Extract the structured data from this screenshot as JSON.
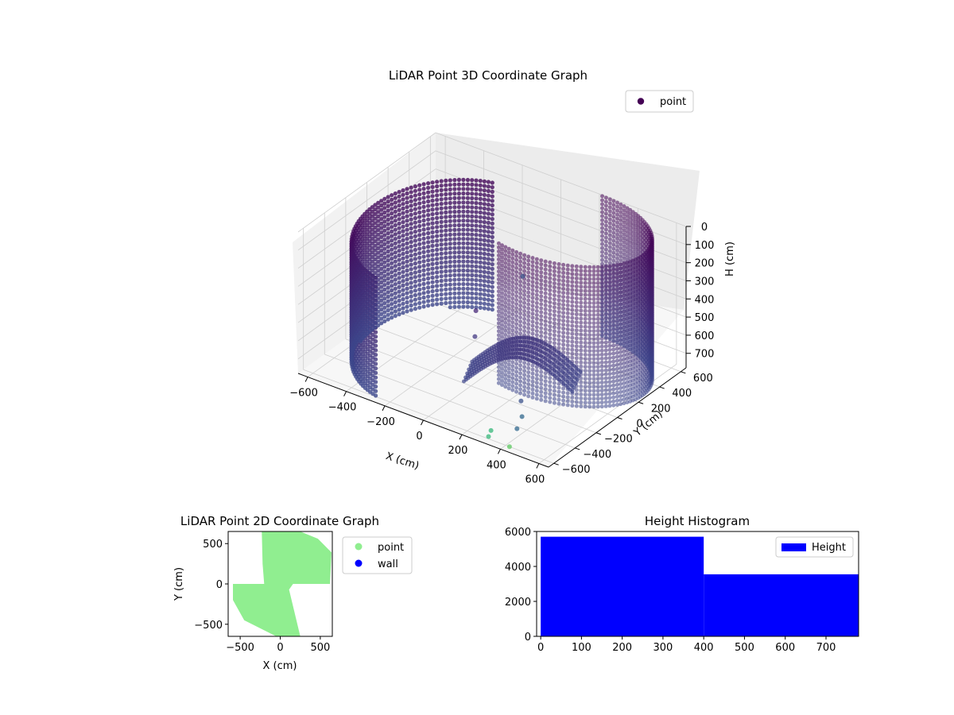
{
  "chart_data": [
    {
      "type": "scatter",
      "subtype": "3d",
      "title": "LiDAR Point 3D Coordinate Graph",
      "xlabel": "X (cm)",
      "ylabel": "Y (cm)",
      "zlabel": "H (cm)",
      "x_ticks": [
        "−600",
        "−400",
        "−200",
        "0",
        "200",
        "400",
        "600"
      ],
      "y_ticks": [
        "−600",
        "−400",
        "−200",
        "0",
        "200",
        "400",
        "600"
      ],
      "z_ticks": [
        "0",
        "100",
        "200",
        "300",
        "400",
        "500",
        "600",
        "700"
      ],
      "xlim": [
        -650,
        650
      ],
      "ylim": [
        -650,
        650
      ],
      "zlim": [
        0,
        780
      ],
      "z_inverted": true,
      "colormap": "viridis",
      "legend": {
        "position": "top-right",
        "entries": [
          {
            "name": "point",
            "color": "#440154"
          }
        ]
      },
      "grid": true
    },
    {
      "type": "scatter",
      "title": "LiDAR Point 2D Coordinate Graph",
      "xlabel": "X (cm)",
      "ylabel": "Y (cm)",
      "x_ticks": [
        "−500",
        "0",
        "500"
      ],
      "y_ticks": [
        "−500",
        "0",
        "500"
      ],
      "xlim": [
        -650,
        650
      ],
      "ylim": [
        -650,
        650
      ],
      "legend": {
        "position": "outside-right",
        "entries": [
          {
            "name": "point",
            "color": "#90ee90"
          },
          {
            "name": "wall",
            "color": "#0000ff"
          }
        ]
      },
      "point_region": [
        [
          -230,
          650
        ],
        [
          250,
          650
        ],
        [
          470,
          560
        ],
        [
          640,
          390
        ],
        [
          620,
          0
        ],
        [
          160,
          0
        ],
        [
          110,
          -70
        ],
        [
          250,
          -650
        ],
        [
          -50,
          -650
        ],
        [
          -450,
          -450
        ],
        [
          -590,
          -200
        ],
        [
          -590,
          0
        ],
        [
          -200,
          0
        ],
        [
          -220,
          250
        ]
      ],
      "grid": false
    },
    {
      "type": "bar",
      "subtype": "histogram",
      "title": "Height Histogram",
      "bins": [
        {
          "start": 0,
          "end": 400,
          "count": 5700
        },
        {
          "start": 400,
          "end": 780,
          "count": 3550
        }
      ],
      "x_ticks": [
        "0",
        "100",
        "200",
        "300",
        "400",
        "500",
        "600",
        "700"
      ],
      "y_ticks": [
        "0",
        "2000",
        "4000",
        "6000"
      ],
      "xlim": [
        -10,
        780
      ],
      "ylim": [
        0,
        6000
      ],
      "bar_color": "#0000ff",
      "legend": {
        "position": "top-right",
        "entries": [
          {
            "name": "Height",
            "color": "#0000ff"
          }
        ]
      },
      "grid": false
    }
  ]
}
